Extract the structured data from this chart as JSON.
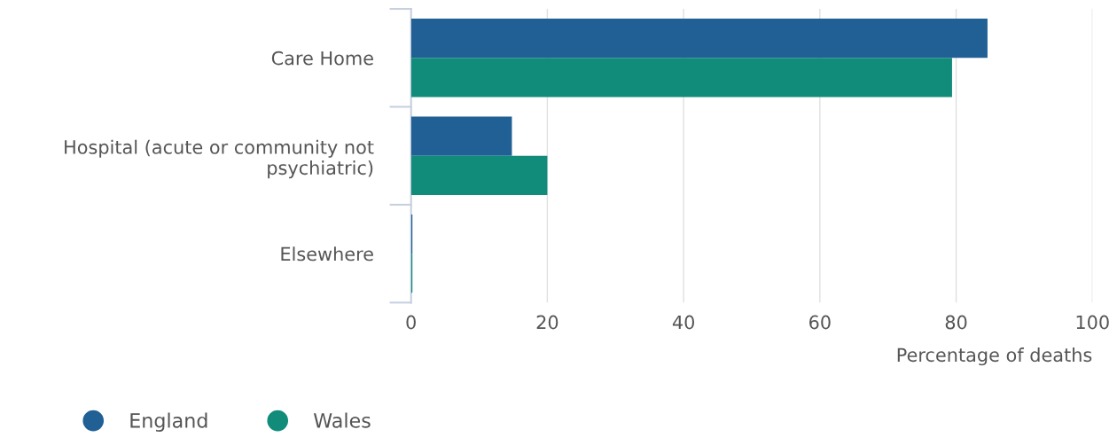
{
  "chart_data": {
    "type": "bar",
    "orientation": "horizontal",
    "categories": [
      "Care Home",
      "Hospital (acute or community not psychiatric)",
      "Elsewhere"
    ],
    "series": [
      {
        "name": "England",
        "color": "#206095",
        "values": [
          84.6,
          14.8,
          0.2
        ]
      },
      {
        "name": "Wales",
        "color": "#118c7b",
        "values": [
          79.4,
          20.0,
          0.2
        ]
      }
    ],
    "xlabel": "Percentage of deaths",
    "xlim": [
      0,
      100
    ],
    "xticks": [
      0,
      20,
      40,
      60,
      80,
      100
    ],
    "grid": "x",
    "legend": "bottom left"
  }
}
